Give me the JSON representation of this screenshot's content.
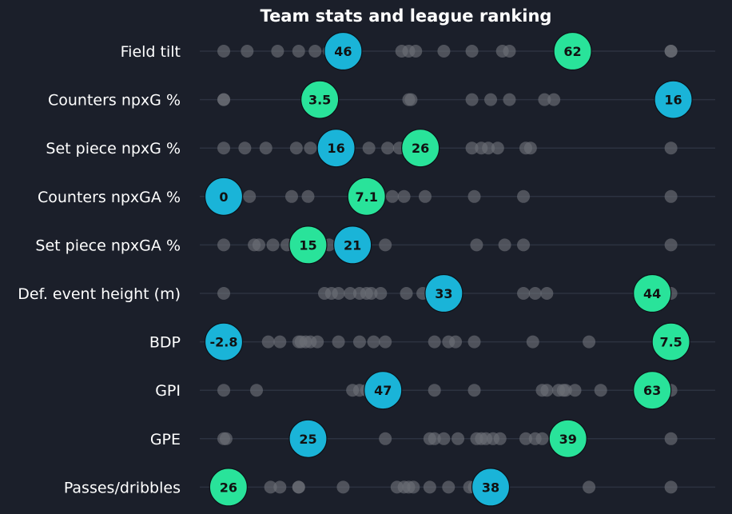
{
  "chart_data": {
    "type": "scatter",
    "title": "Team stats and league ranking",
    "colors": {
      "background": "#1b1f2a",
      "team_a": "#1ab4d8",
      "team_b": "#29e39a",
      "league": "#6b6e76",
      "grid": "#2c3240"
    },
    "rows": [
      {
        "label": "Field tilt",
        "league": [
          0.0,
          0.05,
          0.115,
          0.16,
          0.195,
          0.225,
          0.38,
          0.395,
          0.41,
          0.47,
          0.53,
          0.595,
          0.61,
          0.72,
          0.955,
          0.955
        ],
        "a": {
          "pos": 0.255,
          "label": "46"
        },
        "b": {
          "pos": 0.745,
          "label": "62"
        }
      },
      {
        "label": "Counters npxG %",
        "league": [
          0.0,
          0.0,
          0.395,
          0.4,
          0.53,
          0.57,
          0.61,
          0.685,
          0.705
        ],
        "a": {
          "pos": 0.96,
          "label": "16"
        },
        "b": {
          "pos": 0.205,
          "label": "3.5"
        }
      },
      {
        "label": "Set piece npxG %",
        "league": [
          0.0,
          0.045,
          0.09,
          0.155,
          0.185,
          0.31,
          0.35,
          0.375,
          0.53,
          0.55,
          0.565,
          0.585,
          0.645,
          0.655,
          0.955
        ],
        "a": {
          "pos": 0.24,
          "label": "16"
        },
        "b": {
          "pos": 0.42,
          "label": "26"
        }
      },
      {
        "label": "Counters npxGA %",
        "league": [
          0.055,
          0.145,
          0.18,
          0.36,
          0.385,
          0.43,
          0.535,
          0.64,
          0.955
        ],
        "a": {
          "pos": 0.0,
          "label": "0"
        },
        "b": {
          "pos": 0.305,
          "label": "7.1"
        }
      },
      {
        "label": "Set piece npxGA %",
        "league": [
          0.0,
          0.065,
          0.075,
          0.105,
          0.135,
          0.225,
          0.345,
          0.54,
          0.6,
          0.64,
          0.955
        ],
        "a": {
          "pos": 0.275,
          "label": "21"
        },
        "b": {
          "pos": 0.18,
          "label": "15"
        }
      },
      {
        "label": "Def. event height (m)",
        "league": [
          0.0,
          0.215,
          0.23,
          0.245,
          0.27,
          0.29,
          0.305,
          0.315,
          0.335,
          0.39,
          0.425,
          0.64,
          0.665,
          0.69,
          0.955
        ],
        "a": {
          "pos": 0.47,
          "label": "33"
        },
        "b": {
          "pos": 0.915,
          "label": "44"
        }
      },
      {
        "label": "BDP",
        "league": [
          0.095,
          0.12,
          0.16,
          0.165,
          0.175,
          0.185,
          0.2,
          0.245,
          0.29,
          0.32,
          0.345,
          0.45,
          0.48,
          0.495,
          0.535,
          0.66,
          0.78
        ],
        "a": {
          "pos": 0.0,
          "label": "-2.8"
        },
        "b": {
          "pos": 0.955,
          "label": "7.5"
        }
      },
      {
        "label": "GPI",
        "league": [
          0.0,
          0.07,
          0.275,
          0.29,
          0.305,
          0.45,
          0.535,
          0.68,
          0.69,
          0.715,
          0.725,
          0.73,
          0.75,
          0.805,
          0.955
        ],
        "a": {
          "pos": 0.34,
          "label": "47"
        },
        "b": {
          "pos": 0.915,
          "label": "63"
        }
      },
      {
        "label": "GPE",
        "league": [
          0.0,
          0.005,
          0.345,
          0.44,
          0.45,
          0.47,
          0.5,
          0.54,
          0.55,
          0.56,
          0.575,
          0.59,
          0.645,
          0.665,
          0.68,
          0.955
        ],
        "a": {
          "pos": 0.18,
          "label": "25"
        },
        "b": {
          "pos": 0.735,
          "label": "39"
        }
      },
      {
        "label": "Passes/dribbles",
        "league": [
          0.1,
          0.12,
          0.16,
          0.16,
          0.255,
          0.37,
          0.385,
          0.395,
          0.405,
          0.44,
          0.48,
          0.525,
          0.535,
          0.78,
          0.955
        ],
        "a": {
          "pos": 0.57,
          "label": "38"
        },
        "b": {
          "pos": 0.01,
          "label": "26"
        }
      }
    ]
  }
}
